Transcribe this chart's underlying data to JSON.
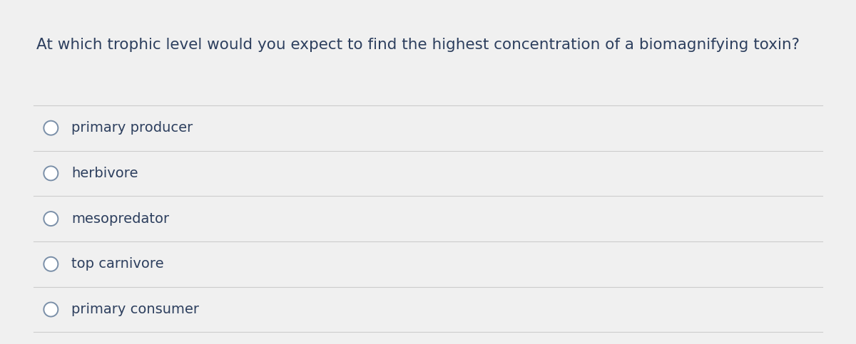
{
  "question": "At which trophic level would you expect to find the highest concentration of a biomagnifying toxin?",
  "options": [
    "primary producer",
    "herbivore",
    "mesopredator",
    "top carnivore",
    "primary consumer"
  ],
  "background_color": "#f0f0f0",
  "inner_background": "#ffffff",
  "text_color": "#2d3f5e",
  "line_color": "#cccccc",
  "question_fontsize": 15.5,
  "option_fontsize": 14,
  "circle_edge_color": "#7a8fa8",
  "circle_face_color": "#ffffff",
  "circle_linewidth": 1.4
}
